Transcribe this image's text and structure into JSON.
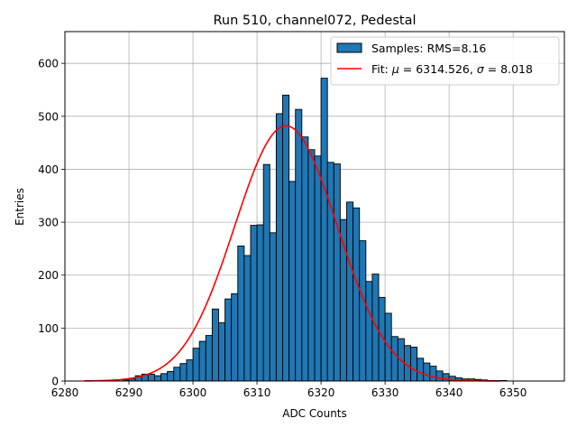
{
  "chart_data": {
    "type": "bar",
    "title": "Run 510, channel072, Pedestal",
    "xlabel": "ADC Counts",
    "ylabel": "Entries",
    "xlim": [
      6280,
      6358
    ],
    "ylim": [
      0,
      660
    ],
    "grid": true,
    "legend_position": "top-right",
    "x_ticks": [
      6280,
      6290,
      6300,
      6310,
      6320,
      6330,
      6340,
      6350
    ],
    "y_ticks": [
      0,
      100,
      200,
      300,
      400,
      500,
      600
    ],
    "colors": {
      "bars": "#1f77b4",
      "bar_edge": "#000000",
      "fit": "#ff0000",
      "grid": "#b0b0b0"
    },
    "histogram": {
      "name": "Samples: RMS=8.16",
      "bin_start": 6283,
      "bin_width": 1,
      "counts": [
        0,
        0,
        0,
        0,
        0,
        0,
        2,
        4,
        10,
        13,
        13,
        10,
        14,
        18,
        26,
        33,
        40,
        62,
        75,
        86,
        136,
        110,
        155,
        165,
        255,
        237,
        294,
        295,
        409,
        280,
        505,
        540,
        377,
        513,
        461,
        437,
        425,
        572,
        413,
        410,
        305,
        338,
        327,
        265,
        188,
        202,
        158,
        128,
        84,
        80,
        67,
        64,
        43,
        34,
        28,
        19,
        14,
        9,
        6,
        4,
        4,
        3,
        2,
        1,
        1,
        1,
        0,
        0,
        0,
        0,
        0,
        0,
        0
      ]
    },
    "fit": {
      "label_prefix": "Fit: ",
      "label_mu": "μ",
      "label_mid": " = 6314.526, ",
      "label_sigma": "σ",
      "label_end": " = 8.018",
      "mu": 6314.526,
      "sigma": 8.018,
      "amplitude": 482,
      "x_range": [
        6283,
        6348
      ]
    }
  }
}
